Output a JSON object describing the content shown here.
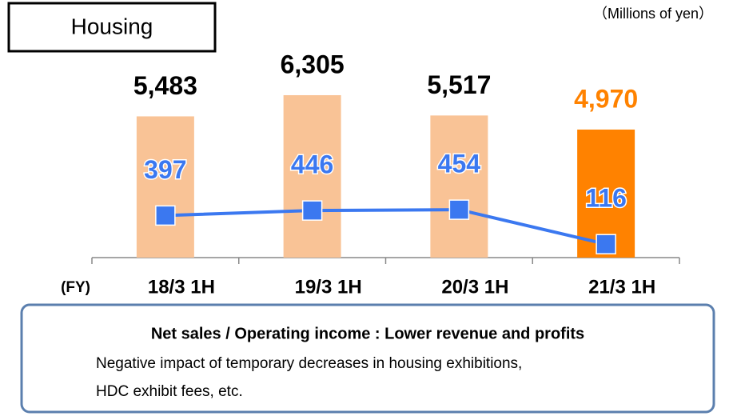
{
  "chart_data": {
    "type": "bar",
    "title": "Housing",
    "unit_label": "（Millions of yen）",
    "x_prefix": "(FY)",
    "categories": [
      "18/3 1H",
      "19/3 1H",
      "20/3 1H",
      "21/3 1H"
    ],
    "series": [
      {
        "type": "bar",
        "colors": [
          "#f9c396",
          "#f9c396",
          "#f9c396",
          "#ff8200"
        ],
        "label_colors": [
          "#000000",
          "#000000",
          "#000000",
          "#ff8200"
        ],
        "values": [
          5483,
          6305,
          5517,
          4970
        ],
        "value_labels": [
          "5,483",
          "6,305",
          "5,517",
          "4,970"
        ]
      },
      {
        "type": "line",
        "axis": "y2",
        "color": "#3b78f0",
        "values": [
          397,
          446,
          454,
          116
        ]
      }
    ],
    "callout": {
      "heading": "Net sales / Operating income : Lower revenue and profits",
      "body": [
        "Negative impact of temporary decreases in housing exhibitions,",
        "HDC exhibit fees, etc."
      ]
    }
  }
}
